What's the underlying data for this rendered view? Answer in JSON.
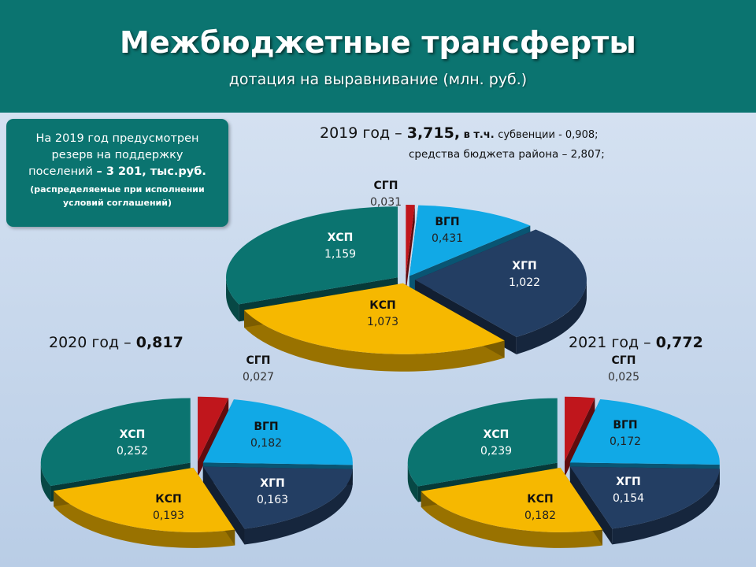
{
  "header": {
    "title": "Межбюджетные трансферты",
    "subtitle": "дотация на выравнивание (млн. руб.)"
  },
  "note": {
    "line1a": "На 2019 год предусмотрен",
    "line1b": "резерв на поддержку",
    "line1c_prefix": "поселений ",
    "line1c_bold": "– 3 201,  тыс.руб.",
    "line2a": "(распределяемые при исполнении",
    "line2b": "условий соглашений)"
  },
  "colors": {
    "sgp": "#c0161c",
    "vgp": "#11a9e6",
    "hgp": "#233e63",
    "ksp": "#f6b800",
    "hsp": "#0b7470"
  },
  "chart_data": [
    {
      "type": "pie",
      "year_prefix": "2019 год – ",
      "total": "3,715,",
      "detail1_prefix": " в т.ч. ",
      "detail1_small": "субвенции",
      "detail1_suffix": "  - 0,908;",
      "detail2": "средства бюджета района – 2,807;",
      "slices": [
        {
          "key": "sgp",
          "name": "СГП",
          "value": 0.031,
          "label": "0,031"
        },
        {
          "key": "vgp",
          "name": "ВГП",
          "value": 0.431,
          "label": "0,431"
        },
        {
          "key": "hgp",
          "name": "ХГП",
          "value": 1.022,
          "label": "1,022"
        },
        {
          "key": "ksp",
          "name": "КСП",
          "value": 1.073,
          "label": "1,073"
        },
        {
          "key": "hsp",
          "name": "ХСП",
          "value": 1.159,
          "label": "1,159"
        }
      ]
    },
    {
      "type": "pie",
      "year_prefix": "2020 год – ",
      "total": "0,817",
      "slices": [
        {
          "key": "sgp",
          "name": "СГП",
          "value": 0.027,
          "label": "0,027"
        },
        {
          "key": "vgp",
          "name": "ВГП",
          "value": 0.182,
          "label": "0,182"
        },
        {
          "key": "hgp",
          "name": "ХГП",
          "value": 0.163,
          "label": "0,163"
        },
        {
          "key": "ksp",
          "name": "КСП",
          "value": 0.193,
          "label": "0,193"
        },
        {
          "key": "hsp",
          "name": "ХСП",
          "value": 0.252,
          "label": "0,252"
        }
      ]
    },
    {
      "type": "pie",
      "year_prefix": "2021 год – ",
      "total": "0,772",
      "slices": [
        {
          "key": "sgp",
          "name": "СГП",
          "value": 0.025,
          "label": "0,025"
        },
        {
          "key": "vgp",
          "name": "ВГП",
          "value": 0.172,
          "label": "0,172"
        },
        {
          "key": "hgp",
          "name": "ХГП",
          "value": 0.154,
          "label": "0,154"
        },
        {
          "key": "ksp",
          "name": "КСП",
          "value": 0.182,
          "label": "0,182"
        },
        {
          "key": "hsp",
          "name": "ХСП",
          "value": 0.239,
          "label": "0,239"
        }
      ]
    }
  ]
}
